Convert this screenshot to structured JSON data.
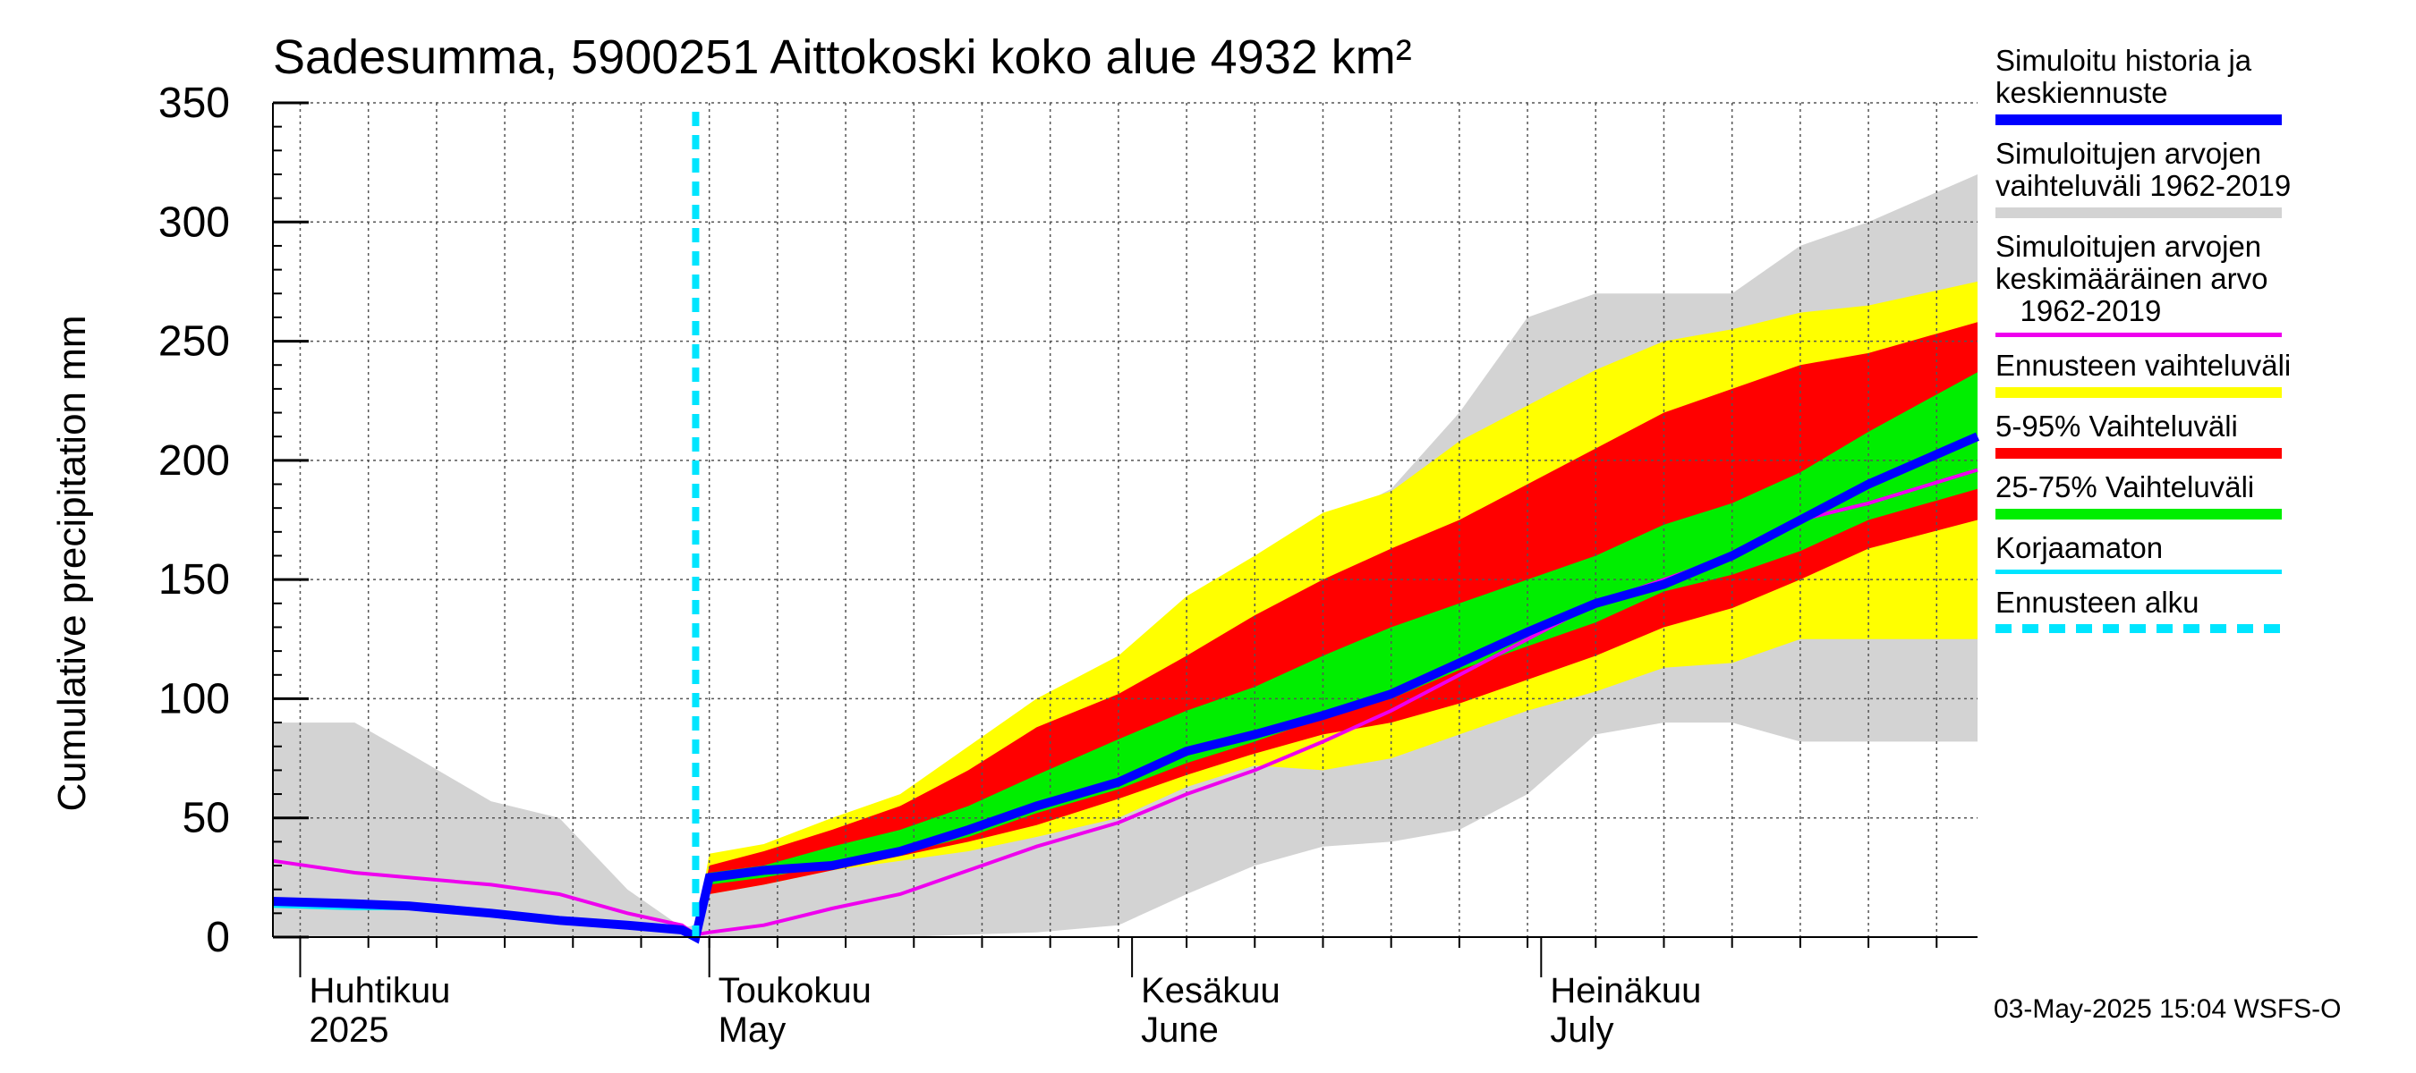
{
  "title": "Sadesumma, 5900251 Aittokoski koko alue 4932 km²",
  "footer_text": "03-May-2025 15:04 WSFS-O",
  "chart_data": {
    "type": "area",
    "ylabel": "Cumulative precipitation   mm",
    "ylim": [
      0,
      350
    ],
    "yticks": [
      0,
      50,
      100,
      150,
      200,
      250,
      300,
      350
    ],
    "x_range": [
      "2025-03-30",
      "2025-08-02"
    ],
    "forecast_start": "2025-04-30",
    "x_labels": [
      {
        "date": "2025-04-01",
        "line1": "Huhtikuu",
        "line2": "2025"
      },
      {
        "date": "2025-05-01",
        "line1": "Toukokuu",
        "line2": "May"
      },
      {
        "date": "2025-06-01",
        "line1": "Kesäkuu",
        "line2": "June"
      },
      {
        "date": "2025-07-01",
        "line1": "Heinäkuu",
        "line2": "July"
      }
    ],
    "grid": true,
    "legend_position": "right",
    "colors": {
      "history_band": "#d3d3d3",
      "forecast_band": "#ffff00",
      "band_5_95": "#ff0000",
      "band_25_75": "#00ee00",
      "mean_line": "#ee00ee",
      "median_line": "#0000ff",
      "uncorrected": "#00e5ff",
      "forecast_start": "#00e5ff"
    },
    "legend": [
      {
        "key": "median_line",
        "label": "Simuloitu historia ja\nkeskiennuste",
        "style": "thick"
      },
      {
        "key": "history_band",
        "label": "Simuloitujen arvojen\nvaihteluväli 1962-2019",
        "style": "thick"
      },
      {
        "key": "mean_line",
        "label": "Simuloitujen arvojen\nkeskimääräinen arvo\n   1962-2019",
        "style": "thin"
      },
      {
        "key": "forecast_band",
        "label": "Ennusteen vaihteluväli",
        "style": "thick"
      },
      {
        "key": "band_5_95",
        "label": "5-95% Vaihteluväli",
        "style": "thick"
      },
      {
        "key": "band_25_75",
        "label": "25-75% Vaihteluväli",
        "style": "thick"
      },
      {
        "key": "uncorrected",
        "label": "Korjaamaton",
        "style": "thin"
      },
      {
        "key": "forecast_start",
        "label": "Ennusteen alku",
        "style": "dash"
      }
    ],
    "x": [
      "2025-03-30",
      "2025-04-05",
      "2025-04-09",
      "2025-04-15",
      "2025-04-20",
      "2025-04-25",
      "2025-04-29",
      "2025-04-30",
      "2025-05-01",
      "2025-05-05",
      "2025-05-10",
      "2025-05-15",
      "2025-05-20",
      "2025-05-25",
      "2025-05-31",
      "2025-06-05",
      "2025-06-10",
      "2025-06-15",
      "2025-06-20",
      "2025-06-25",
      "2025-06-30",
      "2025-07-05",
      "2025-07-10",
      "2025-07-15",
      "2025-07-20",
      "2025-07-25",
      "2025-08-02"
    ],
    "series": [
      {
        "key": "history_band",
        "upper": [
          90,
          90,
          77,
          57,
          50,
          20,
          4,
          5,
          28,
          33,
          37,
          43,
          62,
          88,
          110,
          130,
          150,
          173,
          188,
          220,
          260,
          270,
          270,
          270,
          290,
          300,
          320
        ],
        "lower": [
          0,
          0,
          0,
          0,
          0,
          0,
          0,
          0,
          0,
          0,
          0,
          0,
          1,
          2,
          5,
          18,
          30,
          38,
          40,
          45,
          60,
          85,
          90,
          90,
          82,
          82,
          82
        ]
      },
      {
        "key": "forecast_band",
        "upper": [
          null,
          null,
          null,
          null,
          null,
          null,
          null,
          2,
          35,
          39,
          50,
          60,
          80,
          100,
          118,
          143,
          160,
          178,
          187,
          208,
          223,
          238,
          250,
          255,
          262,
          265,
          275
        ]
      },
      {
        "key": "forecast_band",
        "lower": [
          null,
          null,
          null,
          null,
          null,
          null,
          null,
          0,
          18,
          22,
          28,
          32,
          36,
          42,
          50,
          63,
          72,
          70,
          75,
          85,
          95,
          103,
          113,
          115,
          125,
          125,
          125
        ]
      },
      {
        "key": "band_5_95",
        "upper": [
          null,
          null,
          null,
          null,
          null,
          null,
          null,
          2,
          30,
          36,
          45,
          55,
          70,
          88,
          102,
          118,
          135,
          150,
          163,
          175,
          190,
          205,
          220,
          230,
          240,
          245,
          258
        ]
      },
      {
        "key": "band_5_95",
        "lower": [
          null,
          null,
          null,
          null,
          null,
          null,
          null,
          0,
          18,
          22,
          28,
          34,
          40,
          47,
          58,
          68,
          77,
          85,
          90,
          98,
          108,
          118,
          130,
          138,
          150,
          163,
          175
        ]
      },
      {
        "key": "band_25_75",
        "upper": [
          null,
          null,
          null,
          null,
          null,
          null,
          null,
          2,
          27,
          30,
          38,
          45,
          55,
          68,
          83,
          95,
          105,
          118,
          130,
          140,
          150,
          160,
          173,
          182,
          195,
          212,
          237
        ]
      },
      {
        "key": "band_25_75",
        "lower": [
          null,
          null,
          null,
          null,
          null,
          null,
          null,
          0,
          22,
          25,
          30,
          35,
          42,
          52,
          62,
          73,
          82,
          92,
          100,
          112,
          122,
          132,
          145,
          152,
          162,
          175,
          188
        ]
      },
      {
        "key": "mean_line",
        "values": [
          32,
          27,
          25,
          22,
          18,
          10,
          5,
          1,
          2,
          5,
          12,
          18,
          28,
          38,
          48,
          60,
          70,
          82,
          95,
          110,
          125,
          140,
          150,
          160,
          175,
          182,
          196
        ]
      },
      {
        "key": "median_line",
        "values": [
          15,
          14,
          13,
          10,
          7,
          5,
          3,
          0,
          25,
          28,
          30,
          36,
          45,
          55,
          65,
          78,
          85,
          93,
          102,
          115,
          128,
          140,
          148,
          160,
          175,
          190,
          210
        ]
      },
      {
        "key": "uncorrected",
        "values": [
          13,
          12,
          12,
          9,
          6,
          5,
          3,
          0,
          null,
          null,
          null,
          null,
          null,
          null,
          null,
          null,
          null,
          null,
          null,
          null,
          null,
          null,
          null,
          null,
          null,
          null,
          null
        ]
      }
    ]
  }
}
